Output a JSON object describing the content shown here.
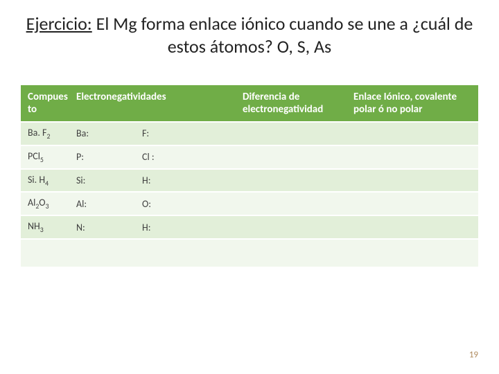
{
  "title": {
    "lead": "Ejercicio:",
    "rest": " El Mg forma enlace iónico cuando se une a ¿cuál de estos átomos? O, S, As"
  },
  "table": {
    "headers": {
      "compound": "Compues to",
      "electronegativities": "Electronegatividades",
      "difference": "Diferencia de electronegatividad",
      "bond_type": "Enlace Iónico, covalente polar ó no polar"
    },
    "header_bg": "#70ad47",
    "header_text_color": "#ffffff",
    "row_odd_bg": "#e2efd9",
    "row_even_bg": "#f1f7ed",
    "rows": [
      {
        "compound_base": "Ba. F",
        "compound_sub": "2",
        "el_a": "Ba:",
        "el_b": "F:",
        "diff": "",
        "type": ""
      },
      {
        "compound_base": "PCl",
        "compound_sub": "5",
        "el_a": "P:",
        "el_b": "Cl :",
        "diff": "",
        "type": ""
      },
      {
        "compound_base": "Si. H",
        "compound_sub": "4",
        "el_a": "Si:",
        "el_b": "H:",
        "diff": "",
        "type": ""
      },
      {
        "compound_base": "Al",
        "compound_sub": "2",
        "compound_tail": "O",
        "compound_sub2": "3",
        "el_a": "Al:",
        "el_b": "O:",
        "diff": "",
        "type": ""
      },
      {
        "compound_base": "NH",
        "compound_sub": "3",
        "el_a": "N:",
        "el_b": "H:",
        "diff": "",
        "type": ""
      }
    ]
  },
  "page_number": "19"
}
